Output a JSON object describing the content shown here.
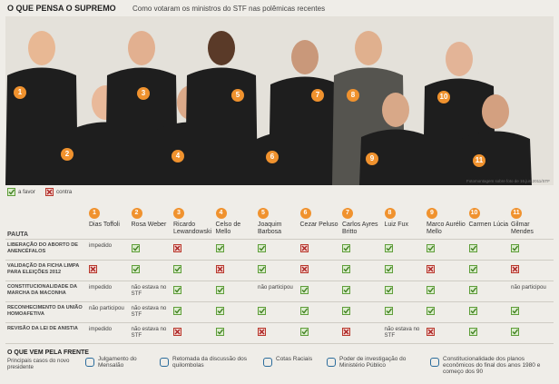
{
  "header": {
    "title": "O QUE PENSA O SUPREMO",
    "subtitle": "Como votaram os ministros do STF nas polêmicas recentes"
  },
  "photo": {
    "numbers": [
      "1",
      "2",
      "3",
      "4",
      "5",
      "6",
      "7",
      "8",
      "9",
      "10",
      "11"
    ],
    "credit": "Fotomontagem sobre foto de 16.jun.2011/STF"
  },
  "legend": [
    "a favor",
    "contra"
  ],
  "table": {
    "pauta": "PAUTA",
    "columns": [
      {
        "number": "1",
        "name": "Dias Toffoli"
      },
      {
        "number": "2",
        "name": "Rosa Weber"
      },
      {
        "number": "3",
        "name": "Ricardo Lewandowski"
      },
      {
        "number": "4",
        "name": "Celso de Mello"
      },
      {
        "number": "5",
        "name": "Joaquim Barbosa"
      },
      {
        "number": "6",
        "name": "Cezar Peluso"
      },
      {
        "number": "7",
        "name": "Carlos Ayres Britto"
      },
      {
        "number": "8",
        "name": "Luiz Fux"
      },
      {
        "number": "9",
        "name": "Marco Aurélio Mello"
      },
      {
        "number": "10",
        "name": "Carmen Lúcia"
      },
      {
        "number": "11",
        "name": "Gilmar Mendes"
      }
    ],
    "rows": [
      {
        "label": "LIBERAÇÃO DO ABORTO DE ANENCÉFALOS",
        "cells": [
          "impedido",
          true,
          false,
          true,
          true,
          false,
          true,
          true,
          true,
          true,
          true
        ]
      },
      {
        "label": "VALIDAÇÃO DA FICHA LIMPA PARA ELEIÇÕES 2012",
        "cells": [
          false,
          true,
          true,
          false,
          true,
          false,
          true,
          true,
          false,
          true,
          false
        ]
      },
      {
        "label": "CONSTITUCIONALIDADE DA MARCHA DA MACONHA",
        "cells": [
          "impedido",
          "não estava no STF",
          true,
          true,
          "não participou",
          true,
          true,
          true,
          true,
          true,
          "não participou"
        ]
      },
      {
        "label": "RECONHECIMENTO DA UNIÃO HOMOAFETIVA",
        "cells": [
          "não participou",
          "não estava no STF",
          true,
          true,
          true,
          true,
          true,
          true,
          true,
          true,
          true
        ]
      },
      {
        "label": "REVISÃO DA LEI DE ANISTIA",
        "cells": [
          "impedido",
          "não estava no STF",
          false,
          true,
          false,
          true,
          false,
          "não estava no STF",
          false,
          true,
          true
        ]
      }
    ]
  },
  "footer": {
    "title": "O QUE VEM PELA FRENTE",
    "subtitle": "Principais casos do novo presidente",
    "items": [
      "Julgamento do Mensalão",
      "Retomada da discussão dos quilombolas",
      "Cotas Raciais",
      "Poder de investigação do Ministério Público",
      "Constitucionalidade dos planos econômicos do final dos anos 1980 e começo dos 90"
    ]
  }
}
